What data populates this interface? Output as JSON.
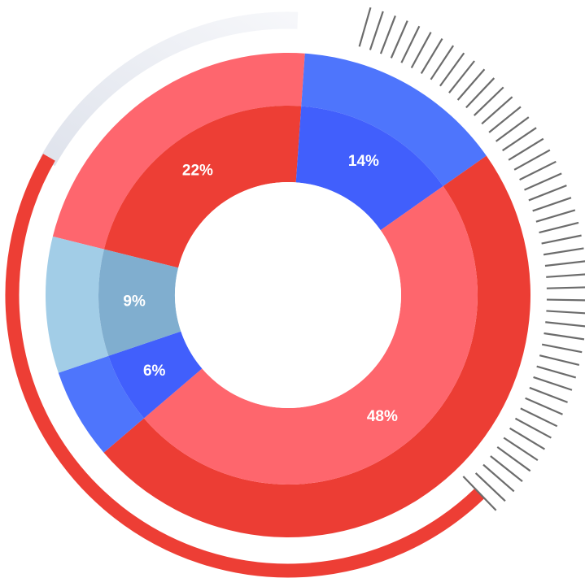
{
  "chart_data": {
    "type": "pie",
    "title": "",
    "slices": [
      {
        "value": 22,
        "label": "22%",
        "outer_color": "#fe666e",
        "inner_color": "#ed3e35"
      },
      {
        "value": 14,
        "label": "14%",
        "outer_color": "#4e75fc",
        "inner_color": "#415ffc"
      },
      {
        "value": 48,
        "label": "48%",
        "outer_color": "#ec3d34",
        "inner_color": "#fe666d"
      },
      {
        "value": 6,
        "label": "6%",
        "outer_color": "#4e75fc",
        "inner_color": "#415ffc"
      },
      {
        "value": 9,
        "label": "9%",
        "outer_color": "#a2cde7",
        "inner_color": "#80aecf"
      }
    ],
    "decorations": {
      "accent_arc_color": "#ed3e35",
      "track_arc_color": "#e6e9f1",
      "tick_color": "#6c6c6c"
    }
  }
}
